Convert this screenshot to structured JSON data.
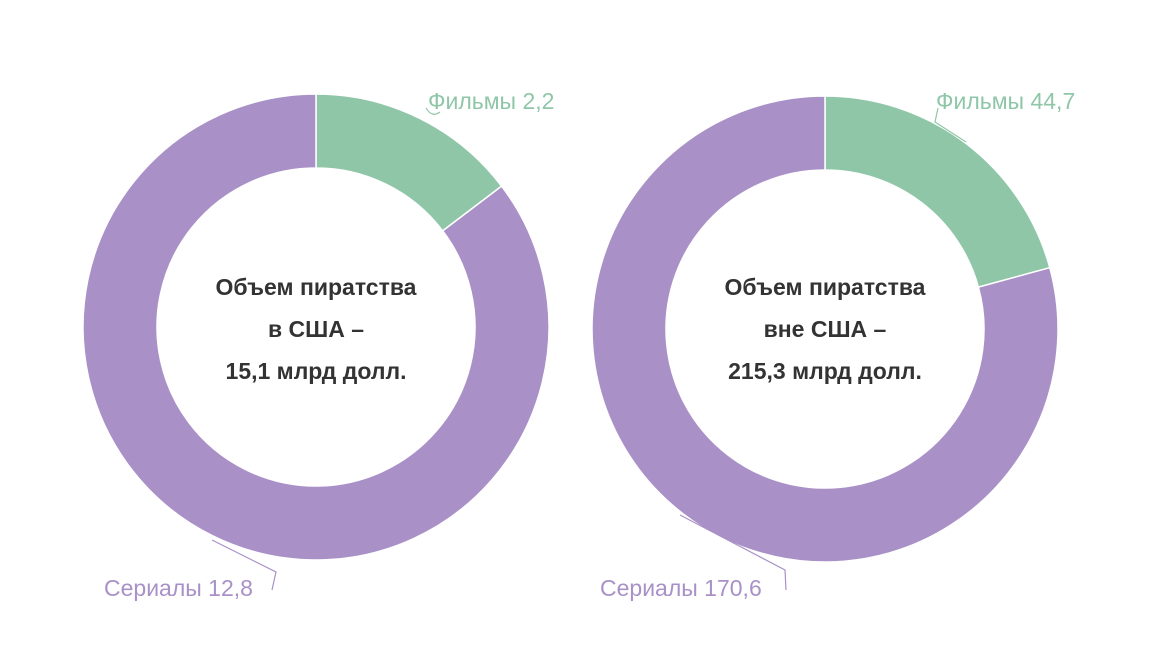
{
  "colors": {
    "films": "#8fc6a8",
    "series": "#a991c8",
    "leader_films": "#8fc6a8",
    "leader_series": "#a991c8",
    "center_text": "#333333"
  },
  "chart_data": [
    {
      "type": "pie",
      "variant": "donut",
      "center_lines": [
        "Объем пиратства",
        "в США –",
        "15,1 млрд долл."
      ],
      "slices": [
        {
          "name": "Фильмы",
          "value": 2.2,
          "label": "Фильмы 2,2",
          "color": "#8fc6a8"
        },
        {
          "name": "Сериалы",
          "value": 12.8,
          "label": "Сериалы 12,8",
          "color": "#a991c8"
        }
      ]
    },
    {
      "type": "pie",
      "variant": "donut",
      "center_lines": [
        "Объем пиратства",
        "вне США –",
        "215,3 млрд долл."
      ],
      "slices": [
        {
          "name": "Фильмы",
          "value": 44.7,
          "label": "Фильмы 44,7",
          "color": "#8fc6a8"
        },
        {
          "name": "Сериалы",
          "value": 170.6,
          "label": "Сериалы 170,6",
          "color": "#a991c8"
        }
      ]
    }
  ]
}
